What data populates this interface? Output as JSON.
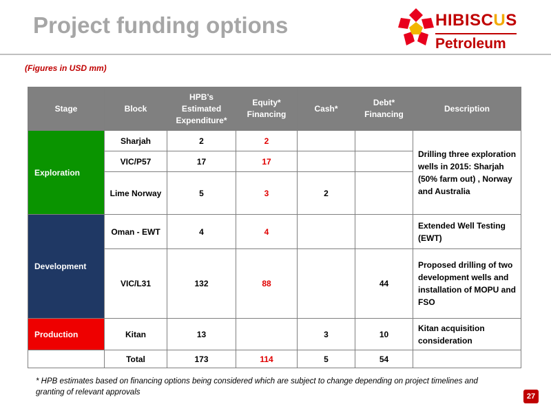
{
  "title": "Project funding options",
  "logo": {
    "name_part1": "HIBISC",
    "name_part2": "U",
    "name_part3": "S",
    "name_line2": "Petroleum"
  },
  "units_note": "(Figures in USD mm)",
  "table": {
    "headers": [
      "Stage",
      "Block",
      "HPB’s Estimated Expenditure*",
      "Equity* Financing",
      "Cash*",
      "Debt* Financing",
      "Description"
    ],
    "rows": {
      "sharjah": {
        "block": "Sharjah",
        "expenditure": "2",
        "equity": "2",
        "cash": "",
        "debt": ""
      },
      "vic_p57": {
        "block": "VIC/P57",
        "expenditure": "17",
        "equity": "17",
        "cash": "",
        "debt": ""
      },
      "lime": {
        "block": "Lime Norway",
        "expenditure": "5",
        "equity": "3",
        "cash": "2",
        "debt": ""
      },
      "oman": {
        "block": "Oman - EWT",
        "expenditure": "4",
        "equity": "4",
        "cash": "",
        "debt": ""
      },
      "vic_l31": {
        "block": "VIC/L31",
        "expenditure": "132",
        "equity": "88",
        "cash": "",
        "debt": "44"
      },
      "kitan": {
        "block": "Kitan",
        "expenditure": "13",
        "equity": "",
        "cash": "3",
        "debt": "10"
      },
      "total": {
        "block": "Total",
        "expenditure": "173",
        "equity": "114",
        "cash": "5",
        "debt": "54"
      }
    },
    "stages": {
      "exploration": "Exploration",
      "development": "Development",
      "production": "Production"
    },
    "descriptions": {
      "exploration": "Drilling three exploration wells in 2015: Sharjah (50% farm out) , Norway and Australia",
      "oman": "Extended Well Testing (EWT)",
      "vic_l31": "Proposed drilling of two development wells and installation of MOPU and FSO",
      "kitan": "Kitan acquisition consideration"
    }
  },
  "footnote": "* HPB estimates based on financing options being considered which are subject to change depending on project timelines and granting of relevant approvals",
  "page_number": "27",
  "colors": {
    "title_gray": "#a6a6a6",
    "brand_red": "#c00000",
    "exploration_green": "#0a9400",
    "development_navy": "#1f3864",
    "production_red": "#ee0000",
    "header_gray": "#808080",
    "equity_red": "#e00000"
  }
}
